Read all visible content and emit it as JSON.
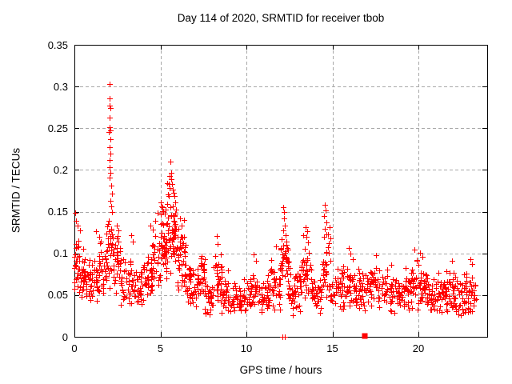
{
  "chart_data": {
    "type": "scatter",
    "title": "Day 114 of 2020, SRMTID for receiver tbob",
    "xlabel": "GPS time / hours",
    "ylabel": "SRMTID / TECUs",
    "xlim": [
      0,
      24
    ],
    "ylim": [
      0,
      0.35
    ],
    "xticks": [
      {
        "v": 0,
        "label": "0"
      },
      {
        "v": 5,
        "label": "5"
      },
      {
        "v": 10,
        "label": "10"
      },
      {
        "v": 15,
        "label": "15"
      },
      {
        "v": 20,
        "label": "20"
      }
    ],
    "yticks": [
      {
        "v": 0,
        "label": "0"
      },
      {
        "v": 0.05,
        "label": "0.05"
      },
      {
        "v": 0.1,
        "label": "0.1"
      },
      {
        "v": 0.15,
        "label": "0.15"
      },
      {
        "v": 0.2,
        "label": "0.2"
      },
      {
        "v": 0.25,
        "label": "0.25"
      },
      {
        "v": 0.3,
        "label": "0.3"
      },
      {
        "v": 0.35,
        "label": "0.35"
      }
    ],
    "grid": true,
    "legend": null,
    "marker": "plus",
    "marker_color": "#ff0000",
    "axis_color": "#000000",
    "grid_color": "#a8a8a8",
    "seed": 1140,
    "x_data_max": 23.35,
    "density_bands": [
      {
        "x0": 0.0,
        "x1": 0.3,
        "n": 26,
        "c": 0.085,
        "s": 0.032,
        "lo": 0.045,
        "hi": 0.148
      },
      {
        "x0": 0.3,
        "x1": 0.8,
        "n": 34,
        "c": 0.072,
        "s": 0.026,
        "lo": 0.04,
        "hi": 0.125
      },
      {
        "x0": 0.8,
        "x1": 1.4,
        "n": 38,
        "c": 0.065,
        "s": 0.024,
        "lo": 0.038,
        "hi": 0.126
      },
      {
        "x0": 1.4,
        "x1": 1.9,
        "n": 34,
        "c": 0.08,
        "s": 0.03,
        "lo": 0.045,
        "hi": 0.142
      },
      {
        "x0": 1.9,
        "x1": 2.25,
        "n": 26,
        "c": 0.1,
        "s": 0.04,
        "lo": 0.05,
        "hi": 0.19
      },
      {
        "x0": 2.25,
        "x1": 2.7,
        "n": 30,
        "c": 0.085,
        "s": 0.032,
        "lo": 0.048,
        "hi": 0.134
      },
      {
        "x0": 2.7,
        "x1": 3.3,
        "n": 34,
        "c": 0.065,
        "s": 0.025,
        "lo": 0.03,
        "hi": 0.121
      },
      {
        "x0": 3.3,
        "x1": 4.0,
        "n": 38,
        "c": 0.058,
        "s": 0.023,
        "lo": 0.02,
        "hi": 0.105
      },
      {
        "x0": 4.0,
        "x1": 4.5,
        "n": 30,
        "c": 0.07,
        "s": 0.026,
        "lo": 0.04,
        "hi": 0.126
      },
      {
        "x0": 4.5,
        "x1": 5.0,
        "n": 34,
        "c": 0.09,
        "s": 0.035,
        "lo": 0.05,
        "hi": 0.152
      },
      {
        "x0": 5.0,
        "x1": 5.4,
        "n": 40,
        "c": 0.112,
        "s": 0.04,
        "lo": 0.06,
        "hi": 0.172
      },
      {
        "x0": 5.4,
        "x1": 5.9,
        "n": 48,
        "c": 0.13,
        "s": 0.042,
        "lo": 0.07,
        "hi": 0.196
      },
      {
        "x0": 5.9,
        "x1": 6.5,
        "n": 44,
        "c": 0.096,
        "s": 0.035,
        "lo": 0.055,
        "hi": 0.142
      },
      {
        "x0": 6.5,
        "x1": 7.1,
        "n": 38,
        "c": 0.06,
        "s": 0.024,
        "lo": 0.034,
        "hi": 0.1
      },
      {
        "x0": 7.1,
        "x1": 7.6,
        "n": 32,
        "c": 0.066,
        "s": 0.024,
        "lo": 0.04,
        "hi": 0.104
      },
      {
        "x0": 7.6,
        "x1": 8.1,
        "n": 30,
        "c": 0.05,
        "s": 0.02,
        "lo": 0.025,
        "hi": 0.086
      },
      {
        "x0": 8.1,
        "x1": 8.6,
        "n": 32,
        "c": 0.064,
        "s": 0.026,
        "lo": 0.034,
        "hi": 0.118
      },
      {
        "x0": 8.6,
        "x1": 9.3,
        "n": 36,
        "c": 0.05,
        "s": 0.02,
        "lo": 0.028,
        "hi": 0.09
      },
      {
        "x0": 9.3,
        "x1": 10.0,
        "n": 36,
        "c": 0.042,
        "s": 0.017,
        "lo": 0.024,
        "hi": 0.075
      },
      {
        "x0": 10.0,
        "x1": 10.7,
        "n": 38,
        "c": 0.05,
        "s": 0.022,
        "lo": 0.027,
        "hi": 0.098
      },
      {
        "x0": 10.7,
        "x1": 11.4,
        "n": 38,
        "c": 0.046,
        "s": 0.02,
        "lo": 0.025,
        "hi": 0.086
      },
      {
        "x0": 11.4,
        "x1": 12.0,
        "n": 38,
        "c": 0.06,
        "s": 0.027,
        "lo": 0.03,
        "hi": 0.108
      },
      {
        "x0": 12.0,
        "x1": 12.5,
        "n": 38,
        "c": 0.09,
        "s": 0.036,
        "lo": 0.04,
        "hi": 0.143
      },
      {
        "x0": 12.5,
        "x1": 13.2,
        "n": 40,
        "c": 0.055,
        "s": 0.023,
        "lo": 0.022,
        "hi": 0.098
      },
      {
        "x0": 13.2,
        "x1": 13.8,
        "n": 36,
        "c": 0.075,
        "s": 0.03,
        "lo": 0.04,
        "hi": 0.122
      },
      {
        "x0": 13.8,
        "x1": 14.4,
        "n": 34,
        "c": 0.05,
        "s": 0.02,
        "lo": 0.028,
        "hi": 0.088
      },
      {
        "x0": 14.4,
        "x1": 14.9,
        "n": 34,
        "c": 0.085,
        "s": 0.035,
        "lo": 0.04,
        "hi": 0.146
      },
      {
        "x0": 14.9,
        "x1": 15.6,
        "n": 34,
        "c": 0.055,
        "s": 0.023,
        "lo": 0.03,
        "hi": 0.098
      },
      {
        "x0": 15.6,
        "x1": 16.3,
        "n": 38,
        "c": 0.06,
        "s": 0.026,
        "lo": 0.03,
        "hi": 0.104
      },
      {
        "x0": 16.3,
        "x1": 17.0,
        "n": 38,
        "c": 0.055,
        "s": 0.023,
        "lo": 0.03,
        "hi": 0.094
      },
      {
        "x0": 17.0,
        "x1": 17.7,
        "n": 38,
        "c": 0.06,
        "s": 0.024,
        "lo": 0.032,
        "hi": 0.098
      },
      {
        "x0": 17.7,
        "x1": 18.5,
        "n": 40,
        "c": 0.055,
        "s": 0.023,
        "lo": 0.03,
        "hi": 0.094
      },
      {
        "x0": 18.5,
        "x1": 19.3,
        "n": 36,
        "c": 0.05,
        "s": 0.02,
        "lo": 0.028,
        "hi": 0.084
      },
      {
        "x0": 19.3,
        "x1": 20.0,
        "n": 40,
        "c": 0.06,
        "s": 0.024,
        "lo": 0.03,
        "hi": 0.098
      },
      {
        "x0": 20.0,
        "x1": 20.6,
        "n": 40,
        "c": 0.06,
        "s": 0.025,
        "lo": 0.03,
        "hi": 0.1
      },
      {
        "x0": 20.6,
        "x1": 21.3,
        "n": 36,
        "c": 0.045,
        "s": 0.02,
        "lo": 0.022,
        "hi": 0.08
      },
      {
        "x0": 21.3,
        "x1": 22.0,
        "n": 40,
        "c": 0.05,
        "s": 0.022,
        "lo": 0.025,
        "hi": 0.09
      },
      {
        "x0": 22.0,
        "x1": 22.7,
        "n": 40,
        "c": 0.046,
        "s": 0.021,
        "lo": 0.022,
        "hi": 0.088
      },
      {
        "x0": 22.7,
        "x1": 23.35,
        "n": 40,
        "c": 0.05,
        "s": 0.022,
        "lo": 0.026,
        "hi": 0.094
      }
    ],
    "feature_points": [
      [
        0.05,
        0.148
      ],
      [
        0.1,
        0.139
      ],
      [
        0.22,
        0.133
      ],
      [
        0.35,
        0.127
      ],
      [
        1.3,
        0.126
      ],
      [
        1.45,
        0.119
      ],
      [
        2.06,
        0.303
      ],
      [
        2.08,
        0.285
      ],
      [
        2.05,
        0.277
      ],
      [
        2.1,
        0.274
      ],
      [
        2.07,
        0.262
      ],
      [
        2.09,
        0.251
      ],
      [
        2.11,
        0.247
      ],
      [
        2.04,
        0.245
      ],
      [
        2.1,
        0.236
      ],
      [
        2.08,
        0.227
      ],
      [
        2.12,
        0.219
      ],
      [
        2.06,
        0.211
      ],
      [
        2.09,
        0.203
      ],
      [
        2.13,
        0.196
      ],
      [
        2.07,
        0.19
      ],
      [
        2.16,
        0.181
      ],
      [
        2.19,
        0.171
      ],
      [
        2.11,
        0.163
      ],
      [
        2.15,
        0.156
      ],
      [
        2.22,
        0.149
      ],
      [
        2.5,
        0.133
      ],
      [
        2.56,
        0.127
      ],
      [
        3.33,
        0.121
      ],
      [
        3.4,
        0.114
      ],
      [
        4.45,
        0.133
      ],
      [
        4.56,
        0.128
      ],
      [
        4.72,
        0.139
      ],
      [
        4.86,
        0.148
      ],
      [
        5.05,
        0.161
      ],
      [
        5.12,
        0.155
      ],
      [
        5.18,
        0.15
      ],
      [
        5.26,
        0.147
      ],
      [
        5.33,
        0.152
      ],
      [
        5.45,
        0.17
      ],
      [
        5.52,
        0.183
      ],
      [
        5.55,
        0.192
      ],
      [
        5.58,
        0.178
      ],
      [
        5.62,
        0.21
      ],
      [
        5.64,
        0.196
      ],
      [
        5.66,
        0.188
      ],
      [
        5.7,
        0.183
      ],
      [
        5.73,
        0.176
      ],
      [
        5.78,
        0.172
      ],
      [
        5.82,
        0.168
      ],
      [
        5.87,
        0.161
      ],
      [
        5.92,
        0.152
      ],
      [
        6.15,
        0.141
      ],
      [
        6.26,
        0.133
      ],
      [
        8.3,
        0.12
      ],
      [
        8.37,
        0.111
      ],
      [
        10.42,
        0.098
      ],
      [
        10.56,
        0.091
      ],
      [
        11.76,
        0.108
      ],
      [
        12.16,
        0.155
      ],
      [
        12.2,
        0.149
      ],
      [
        12.23,
        0.141
      ],
      [
        12.26,
        0.133
      ],
      [
        12.14,
        0.127
      ],
      [
        12.29,
        0.121
      ],
      [
        12.33,
        0.114
      ],
      [
        13.46,
        0.131
      ],
      [
        13.55,
        0.126
      ],
      [
        13.51,
        0.119
      ],
      [
        13.61,
        0.113
      ],
      [
        14.57,
        0.158
      ],
      [
        14.62,
        0.151
      ],
      [
        14.55,
        0.144
      ],
      [
        14.66,
        0.137
      ],
      [
        14.6,
        0.129
      ],
      [
        14.69,
        0.122
      ],
      [
        15.96,
        0.106
      ],
      [
        16.06,
        0.099
      ],
      [
        17.56,
        0.097
      ],
      [
        19.78,
        0.104
      ],
      [
        20.12,
        0.1
      ],
      [
        20.26,
        0.095
      ],
      [
        21.96,
        0.091
      ],
      [
        23.06,
        0.093
      ],
      [
        23.16,
        0.087
      ]
    ],
    "zero_points": [
      [
        12.1,
        0
      ],
      [
        12.25,
        0
      ]
    ],
    "zero_cluster": {
      "x": 16.88,
      "y": 0.001,
      "marker": "filled-square"
    }
  }
}
